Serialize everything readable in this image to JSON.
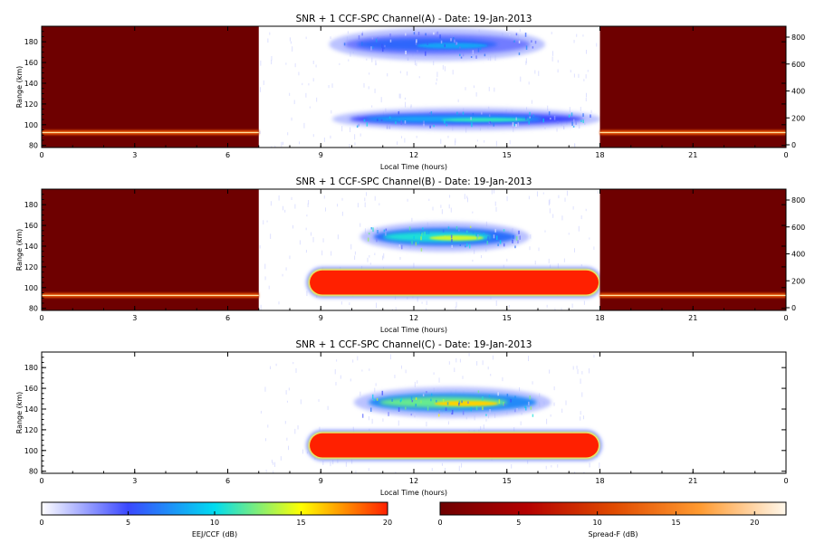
{
  "chart_data": {
    "type": "heatmap",
    "panels": [
      {
        "title": "SNR + 1 CCF-SPC Channel(A) - Date: 19-Jan-2013",
        "xlabel": "Local Time (hours)",
        "ylabel": "Range (km)",
        "xlim": [
          0,
          24
        ],
        "ylim": [
          78,
          195
        ],
        "x_ticks": [
          "0",
          "3",
          "6",
          "9",
          "12",
          "15",
          "18",
          "21",
          "0"
        ],
        "y_ticks": [
          "80",
          "100",
          "120",
          "140",
          "160",
          "180"
        ],
        "right_y_ticks": [
          "0",
          "200",
          "400",
          "600",
          "800"
        ],
        "spread_f_windows": [
          [
            0,
            7
          ],
          [
            18,
            24
          ]
        ],
        "ccf_window": [
          7,
          18
        ],
        "layers": [
          {
            "range_km": [
              98,
              113
            ],
            "time_hours": [
              9.6,
              17.8
            ],
            "peak_db": 11
          },
          {
            "range_km": [
              165,
              190
            ],
            "time_hours": [
              9.5,
              16.0
            ],
            "peak_db": 8
          }
        ],
        "spread_f_echo": {
          "range_km": [
            91,
            94
          ],
          "peak_db": 14
        }
      },
      {
        "title": "SNR + 1 CCF-SPC Channel(B) - Date: 19-Jan-2013",
        "xlabel": "Local Time (hours)",
        "ylabel": "Range (km)",
        "xlim": [
          0,
          24
        ],
        "ylim": [
          78,
          195
        ],
        "x_ticks": [
          "0",
          "3",
          "6",
          "9",
          "12",
          "15",
          "18",
          "21",
          "0"
        ],
        "y_ticks": [
          "80",
          "100",
          "120",
          "140",
          "160",
          "180"
        ],
        "right_y_ticks": [
          "0",
          "200",
          "400",
          "600",
          "800"
        ],
        "spread_f_windows": [
          [
            0,
            7
          ],
          [
            18,
            24
          ]
        ],
        "ccf_window": [
          7,
          18
        ],
        "layers": [
          {
            "range_km": [
              92,
              118
            ],
            "time_hours": [
              8.6,
              18.0
            ],
            "peak_db": 20
          },
          {
            "range_km": [
              138,
              160
            ],
            "time_hours": [
              10.5,
              15.5
            ],
            "peak_db": 14
          }
        ],
        "spread_f_echo": {
          "range_km": [
            91,
            94
          ],
          "peak_db": 14
        }
      },
      {
        "title": "SNR + 1 CCF-SPC Channel(C) - Date: 19-Jan-2013",
        "xlabel": "Local Time (hours)",
        "ylabel": "Range (km)",
        "xlim": [
          0,
          24
        ],
        "ylim": [
          78,
          195
        ],
        "x_ticks": [
          "0",
          "3",
          "6",
          "9",
          "12",
          "15",
          "18",
          "21",
          "0"
        ],
        "y_ticks": [
          "80",
          "100",
          "120",
          "140",
          "160",
          "180"
        ],
        "ccf_window": [
          7,
          18
        ],
        "layers": [
          {
            "range_km": [
              92,
              118
            ],
            "time_hours": [
              8.6,
              18.0
            ],
            "peak_db": 20
          },
          {
            "range_km": [
              135,
              158
            ],
            "time_hours": [
              10.3,
              16.2
            ],
            "peak_db": 16
          }
        ]
      }
    ],
    "colorbars": [
      {
        "label": "EEJ/CCF (dB)",
        "ticks": [
          "0",
          "5",
          "10",
          "15",
          "20"
        ],
        "range": [
          0,
          20
        ],
        "colors": [
          "#ffffff",
          "#3a48ff",
          "#00dcf0",
          "#ffff00",
          "#ff2000"
        ]
      },
      {
        "label": "Spread-F (dB)",
        "ticks": [
          "0",
          "5",
          "10",
          "15",
          "20"
        ],
        "range": [
          0,
          22
        ],
        "colors": [
          "#6e0000",
          "#b40000",
          "#e04a00",
          "#ff9a30",
          "#fff8ec"
        ]
      }
    ]
  }
}
